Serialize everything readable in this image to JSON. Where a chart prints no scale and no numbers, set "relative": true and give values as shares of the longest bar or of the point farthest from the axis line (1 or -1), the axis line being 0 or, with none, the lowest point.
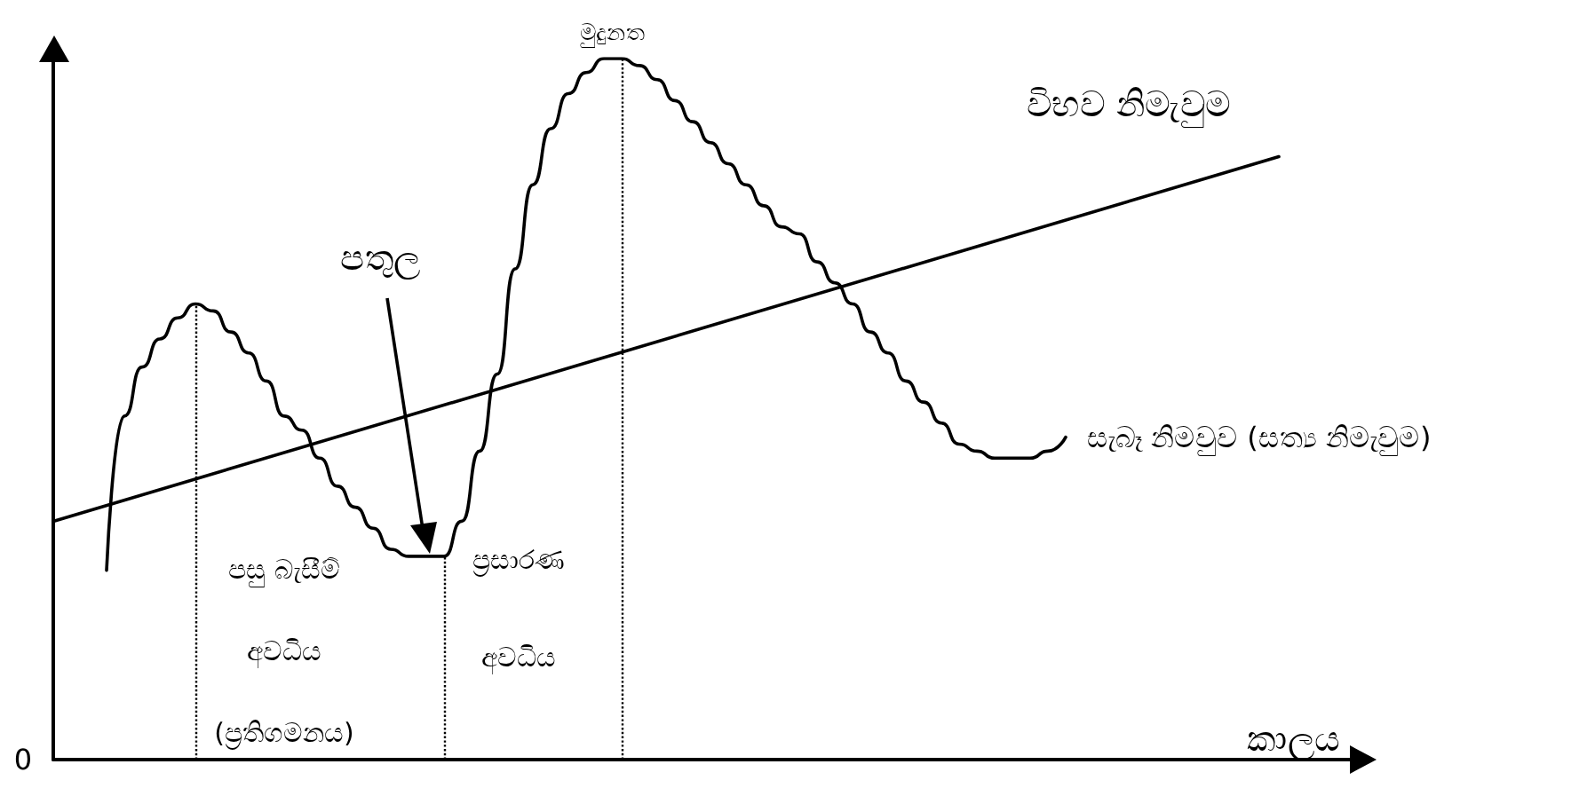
{
  "chart_data": {
    "type": "line",
    "relative": true,
    "xlabel": "කාලය",
    "marker": "none",
    "line_style": "solid",
    "categories": [
      null,
      null,
      null,
      null,
      null,
      null,
      null,
      null,
      null,
      null,
      null,
      null,
      null,
      null,
      null,
      null,
      null,
      null,
      null,
      null,
      null,
      null,
      null,
      null,
      null,
      null,
      null,
      null,
      null,
      null,
      null,
      null,
      null,
      null,
      null,
      null,
      null,
      null,
      null,
      null,
      null,
      null,
      null,
      null,
      null,
      null,
      null,
      null,
      null,
      null,
      null,
      null,
      null,
      null,
      null,
      null,
      null,
      null,
      null,
      null,
      null,
      null,
      null,
      null,
      null,
      null,
      null,
      null,
      null,
      null,
      null,
      null,
      null,
      null
    ],
    "series": [
      {
        "name": "සැබෑ නිමවුව (සත්‍ය නිමැවුම)",
        "color": "#000000",
        "values": [
          null,
          null,
          null,
          0.27,
          0.49,
          0.56,
          0.6,
          0.63,
          0.65,
          0.64,
          0.61,
          0.58,
          0.54,
          0.49,
          0.47,
          0.43,
          0.39,
          0.36,
          0.33,
          0.3,
          0.29,
          0.29,
          0.29,
          0.34,
          0.44,
          0.55,
          0.7,
          0.82,
          0.9,
          0.95,
          0.98,
          1.0,
          1.0,
          0.99,
          0.97,
          0.94,
          0.91,
          0.88,
          0.85,
          0.82,
          0.79,
          0.76,
          0.75,
          0.71,
          0.68,
          0.65,
          0.61,
          0.58,
          0.54,
          0.51,
          0.48,
          0.45,
          0.44,
          0.43,
          0.43,
          0.43,
          0.44,
          0.46,
          null,
          null,
          null,
          null,
          null,
          null,
          null,
          null,
          null,
          null,
          null,
          null,
          null,
          null,
          null,
          null
        ]
      },
      {
        "name": "විභව නිමැවුම",
        "color": "#000000",
        "values": [
          0.34,
          null,
          null,
          null,
          null,
          null,
          null,
          null,
          null,
          null,
          null,
          null,
          null,
          null,
          null,
          null,
          null,
          null,
          null,
          null,
          null,
          null,
          null,
          null,
          null,
          null,
          null,
          null,
          null,
          null,
          null,
          null,
          null,
          null,
          null,
          null,
          null,
          null,
          null,
          null,
          null,
          null,
          null,
          null,
          null,
          null,
          null,
          null,
          null,
          null,
          null,
          null,
          null,
          null,
          null,
          null,
          null,
          null,
          null,
          null,
          null,
          null,
          null,
          null,
          null,
          null,
          null,
          null,
          null,
          0.86,
          null,
          null,
          null,
          null
        ]
      }
    ],
    "annotations": [
      "මුදුනත",
      "පතුල",
      "පසු බැසීම්\nඅවධිය\n(ප්‍රතිගමනය)",
      "ප්‍රසාරණ\nඅවධිය",
      "0"
    ]
  }
}
